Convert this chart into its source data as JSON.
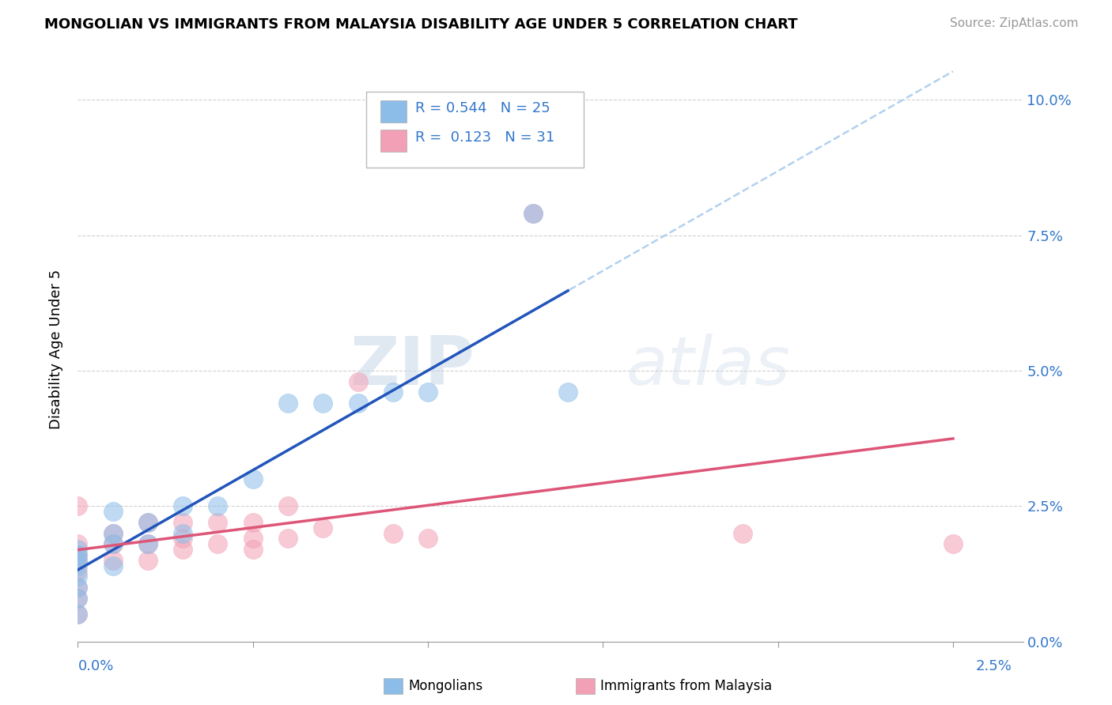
{
  "title": "MONGOLIAN VS IMMIGRANTS FROM MALAYSIA DISABILITY AGE UNDER 5 CORRELATION CHART",
  "source": "Source: ZipAtlas.com",
  "ylabel": "Disability Age Under 5",
  "xlim": [
    0.0,
    0.027
  ],
  "ylim": [
    0.0,
    0.108
  ],
  "x_axis_min_label": "0.0%",
  "x_axis_max_label": "2.5%",
  "x_axis_max_val": 0.025,
  "ytick_positions": [
    0.0,
    0.025,
    0.05,
    0.075,
    0.1
  ],
  "ytick_labels": [
    "0.0%",
    "2.5%",
    "5.0%",
    "7.5%",
    "10.0%"
  ],
  "mongolian_color": "#8bbde8",
  "malaysia_color": "#f2a0b5",
  "mongolian_line_color": "#2255bb",
  "malaysia_line_color": "#dd5577",
  "conf_line_color": "#aaccee",
  "legend_R_mongolian": "0.544",
  "legend_N_mongolian": "25",
  "legend_R_malaysia": "0.123",
  "legend_N_malaysia": "31",
  "mongolian_x": [
    0.0,
    0.0,
    0.0,
    0.0,
    0.0,
    0.0,
    0.0,
    0.0,
    0.001,
    0.001,
    0.001,
    0.001,
    0.002,
    0.002,
    0.003,
    0.003,
    0.004,
    0.005,
    0.006,
    0.007,
    0.008,
    0.009,
    0.01,
    0.013,
    0.014
  ],
  "mongolian_y": [
    0.005,
    0.008,
    0.01,
    0.012,
    0.014,
    0.015,
    0.016,
    0.017,
    0.014,
    0.018,
    0.02,
    0.024,
    0.018,
    0.022,
    0.02,
    0.025,
    0.025,
    0.03,
    0.044,
    0.044,
    0.044,
    0.046,
    0.046,
    0.079,
    0.046
  ],
  "malaysia_x": [
    0.0,
    0.0,
    0.0,
    0.0,
    0.0,
    0.0,
    0.0,
    0.0,
    0.001,
    0.001,
    0.001,
    0.002,
    0.002,
    0.002,
    0.003,
    0.003,
    0.003,
    0.004,
    0.004,
    0.005,
    0.005,
    0.005,
    0.006,
    0.006,
    0.007,
    0.008,
    0.009,
    0.01,
    0.013,
    0.019,
    0.025
  ],
  "malaysia_y": [
    0.005,
    0.008,
    0.01,
    0.013,
    0.015,
    0.016,
    0.018,
    0.025,
    0.015,
    0.018,
    0.02,
    0.015,
    0.018,
    0.022,
    0.017,
    0.019,
    0.022,
    0.018,
    0.022,
    0.017,
    0.019,
    0.022,
    0.019,
    0.025,
    0.021,
    0.048,
    0.02,
    0.019,
    0.079,
    0.02,
    0.018
  ],
  "background_color": "#ffffff",
  "grid_color": "#cccccc",
  "watermark_zip": "ZIP",
  "watermark_atlas": "atlas"
}
